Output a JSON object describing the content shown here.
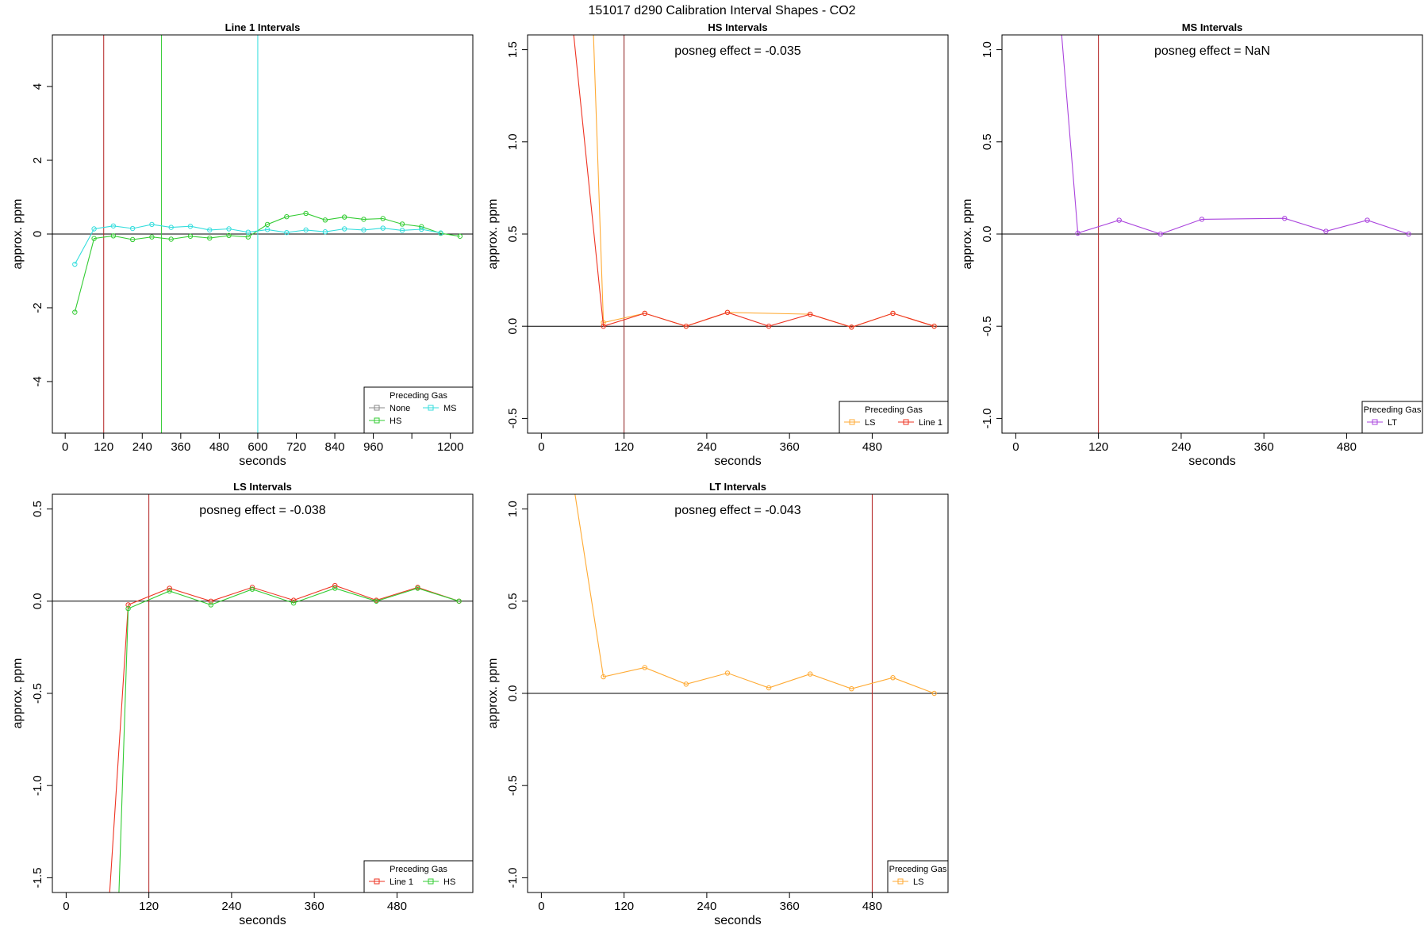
{
  "figure_title": "151017  d290   Calibration Interval Shapes - CO2",
  "chart_data": [
    {
      "type": "line",
      "title": "Line 1 Intervals",
      "xlabel": "seconds",
      "ylabel": "approx. ppm",
      "xlim": [
        -40,
        1270
      ],
      "ylim": [
        -5.4,
        5.4
      ],
      "xticks": [
        0,
        120,
        240,
        360,
        480,
        600,
        720,
        840,
        960,
        1080,
        1200
      ],
      "xtick_labels": [
        "0",
        "120",
        "240",
        "360",
        "480",
        "600",
        "720",
        "840",
        "960",
        "",
        "1200"
      ],
      "yticks": [
        -4,
        -2,
        0,
        2,
        4
      ],
      "ytick_labels": [
        "-4",
        "-2",
        "0",
        "2",
        "4"
      ],
      "hline": 0,
      "vlines": [
        {
          "x": 120,
          "color": "#b22222"
        },
        {
          "x": 300,
          "color": "#33cc33"
        },
        {
          "x": 600,
          "color": "#33dddd"
        }
      ],
      "annotation": "",
      "legend": {
        "title": "Preceding Gas",
        "position": "bottom-right",
        "entries": [
          {
            "label": "None",
            "color": "#888888"
          },
          {
            "label": "MS",
            "color": "#33dddd"
          },
          {
            "label": "HS",
            "color": "#33cc33"
          }
        ]
      },
      "series": [
        {
          "name": "HS",
          "color": "#33cc33",
          "x": [
            30,
            90,
            150,
            210,
            270,
            330,
            390,
            450,
            510,
            570,
            630,
            690,
            750,
            810,
            870,
            930,
            990,
            1050,
            1110,
            1170,
            1230
          ],
          "y": [
            -2.12,
            -0.12,
            -0.05,
            -0.15,
            -0.08,
            -0.14,
            -0.06,
            -0.11,
            -0.04,
            -0.08,
            0.26,
            0.47,
            0.56,
            0.38,
            0.46,
            0.4,
            0.42,
            0.27,
            0.2,
            0.02,
            -0.06
          ]
        },
        {
          "name": "MS",
          "color": "#33dddd",
          "x": [
            30,
            90,
            150,
            210,
            270,
            330,
            390,
            450,
            510,
            570,
            630,
            690,
            750,
            810,
            870,
            930,
            990,
            1050,
            1110,
            1170
          ],
          "y": [
            -0.82,
            0.14,
            0.22,
            0.15,
            0.26,
            0.18,
            0.21,
            0.11,
            0.14,
            0.05,
            0.12,
            0.04,
            0.11,
            0.06,
            0.14,
            0.11,
            0.16,
            0.1,
            0.13,
            0.03
          ]
        }
      ]
    },
    {
      "type": "line",
      "title": "HS Intervals",
      "xlabel": "seconds",
      "ylabel": "approx. ppm",
      "xlim": [
        -20,
        590
      ],
      "ylim": [
        -0.58,
        1.58
      ],
      "xticks": [
        0,
        120,
        240,
        360,
        480
      ],
      "xtick_labels": [
        "0",
        "120",
        "240",
        "360",
        "480"
      ],
      "yticks": [
        -0.5,
        0.0,
        0.5,
        1.0,
        1.5
      ],
      "ytick_labels": [
        "-0.5",
        "0.0",
        "0.5",
        "1.0",
        "1.5"
      ],
      "hline": 0,
      "vlines": [
        {
          "x": 120,
          "color": "#8b1a1a"
        }
      ],
      "annotation": "posneg effect = -0.035",
      "legend": {
        "title": "Preceding Gas",
        "position": "bottom-right",
        "entries": [
          {
            "label": "LS",
            "color": "#ffaa33"
          },
          {
            "label": "Line 1",
            "color": "#ee3322"
          }
        ]
      },
      "series": [
        {
          "name": "LS",
          "color": "#ffaa33",
          "x": [
            75,
            90,
            150,
            210,
            270,
            390,
            450,
            510,
            570
          ],
          "y": [
            1.65,
            0.02,
            0.07,
            0.0,
            0.075,
            0.065,
            -0.005,
            0.07,
            0.0
          ]
        },
        {
          "name": "Line 1",
          "color": "#ee3322",
          "x": [
            45,
            90,
            150,
            210,
            270,
            330,
            390,
            450,
            510,
            570
          ],
          "y": [
            1.65,
            0.0,
            0.07,
            0.0,
            0.075,
            0.0,
            0.065,
            -0.005,
            0.07,
            0.0
          ]
        }
      ]
    },
    {
      "type": "line",
      "title": "MS Intervals",
      "xlabel": "seconds",
      "ylabel": "approx. ppm",
      "xlim": [
        -20,
        590
      ],
      "ylim": [
        -1.08,
        1.08
      ],
      "xticks": [
        0,
        120,
        240,
        360,
        480
      ],
      "xtick_labels": [
        "0",
        "120",
        "240",
        "360",
        "480"
      ],
      "yticks": [
        -1.0,
        -0.5,
        0.0,
        0.5,
        1.0
      ],
      "ytick_labels": [
        "-1.0",
        "-0.5",
        "0.0",
        "0.5",
        "1.0"
      ],
      "hline": 0,
      "vlines": [
        {
          "x": 120,
          "color": "#b22222"
        }
      ],
      "annotation": "posneg effect = NaN",
      "legend": {
        "title": "Preceding Gas",
        "position": "bottom-right",
        "entries": [
          {
            "label": "LT",
            "color": "#aa44dd"
          }
        ]
      },
      "series": [
        {
          "name": "LT",
          "color": "#aa44dd",
          "x": [
            65,
            90,
            150,
            210,
            270,
            390,
            450,
            510,
            570
          ],
          "y": [
            1.15,
            0.005,
            0.075,
            0.0,
            0.08,
            0.085,
            0.015,
            0.075,
            0.0
          ]
        }
      ]
    },
    {
      "type": "line",
      "title": "LS Intervals",
      "xlabel": "seconds",
      "ylabel": "approx. ppm",
      "xlim": [
        -20,
        590
      ],
      "ylim": [
        -1.58,
        0.58
      ],
      "xticks": [
        0,
        120,
        240,
        360,
        480
      ],
      "xtick_labels": [
        "0",
        "120",
        "240",
        "360",
        "480"
      ],
      "yticks": [
        -1.5,
        -1.0,
        -0.5,
        0.0,
        0.5
      ],
      "ytick_labels": [
        "-1.5",
        "-1.0",
        "-0.5",
        "0.0",
        "0.5"
      ],
      "hline": 0,
      "vlines": [
        {
          "x": 120,
          "color": "#b22222"
        }
      ],
      "annotation": "posneg effect = -0.038",
      "legend": {
        "title": "Preceding Gas",
        "position": "bottom-right",
        "entries": [
          {
            "label": "Line 1",
            "color": "#ee3322"
          },
          {
            "label": "HS",
            "color": "#33cc33"
          }
        ]
      },
      "series": [
        {
          "name": "Line 1",
          "color": "#ee3322",
          "x": [
            62,
            90,
            150,
            210,
            270,
            330,
            390,
            450,
            510,
            570
          ],
          "y": [
            -1.65,
            -0.02,
            0.07,
            0.0,
            0.075,
            0.005,
            0.085,
            0.005,
            0.075,
            0.0
          ]
        },
        {
          "name": "HS",
          "color": "#33cc33",
          "x": [
            76,
            90,
            150,
            210,
            270,
            330,
            390,
            450,
            510,
            570
          ],
          "y": [
            -1.65,
            -0.04,
            0.055,
            -0.02,
            0.065,
            -0.01,
            0.07,
            0.0,
            0.07,
            0.0
          ]
        }
      ]
    },
    {
      "type": "line",
      "title": "LT Intervals",
      "xlabel": "seconds",
      "ylabel": "approx. ppm",
      "xlim": [
        -20,
        590
      ],
      "ylim": [
        -1.08,
        1.08
      ],
      "xticks": [
        0,
        120,
        240,
        360,
        480
      ],
      "xtick_labels": [
        "0",
        "120",
        "240",
        "360",
        "480"
      ],
      "yticks": [
        -1.0,
        -0.5,
        0.0,
        0.5,
        1.0
      ],
      "ytick_labels": [
        "-1.0",
        "-0.5",
        "0.0",
        "0.5",
        "1.0"
      ],
      "hline": 0,
      "vlines": [
        {
          "x": 480,
          "color": "#b22222"
        }
      ],
      "annotation": "posneg effect = -0.043",
      "legend": {
        "title": "Preceding Gas",
        "position": "bottom-right",
        "entries": [
          {
            "label": "LS",
            "color": "#ffaa33"
          }
        ]
      },
      "series": [
        {
          "name": "LS",
          "color": "#ffaa33",
          "x": [
            48,
            90,
            150,
            210,
            270,
            330,
            390,
            450,
            510,
            570
          ],
          "y": [
            1.1,
            0.09,
            0.14,
            0.05,
            0.11,
            0.03,
            0.105,
            0.025,
            0.085,
            0.0
          ]
        }
      ]
    }
  ]
}
